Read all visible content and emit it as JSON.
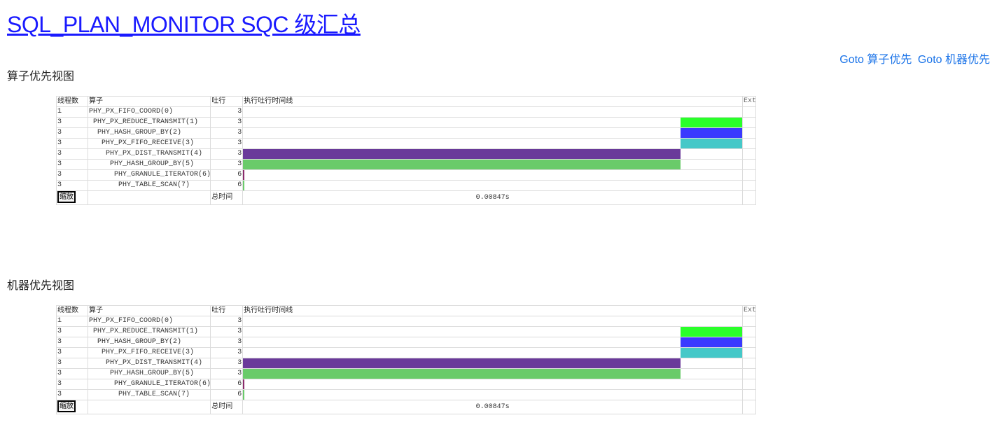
{
  "page": {
    "title": "SQL_PLAN_MONITOR SQC 级汇总",
    "goto_operator": "Goto 算子优先",
    "goto_machine": "Goto 机器优先"
  },
  "colors": {
    "link": "#1a1aff",
    "link_secondary": "#1a73e8",
    "bar_reduce_transmit": "#2aff2a",
    "bar_hash_group_by_2": "#3a3aff",
    "bar_fifo_receive": "#45c8c8",
    "bar_dist_transmit": "#6a3a9a",
    "bar_hash_group_by_5": "#6acb6a",
    "bar_thin": "#8a2a6a"
  },
  "sections": [
    {
      "heading": "算子优先视图",
      "columns": {
        "threads": "线程数",
        "operator": "算子",
        "rows": "吐行",
        "timeline": "执行吐行时间线",
        "ext": "Ext"
      },
      "rows": [
        {
          "threads": "1",
          "operator": "PHY_PX_FIFO_COORD(0)",
          "indent": 0,
          "rows": "3",
          "bar": null
        },
        {
          "threads": "3",
          "operator": "PHY_PX_REDUCE_TRANSMIT(1)",
          "indent": 1,
          "rows": "3",
          "bar": {
            "start": 0.8766,
            "end": 1.0,
            "color": "#2aff2a"
          }
        },
        {
          "threads": "3",
          "operator": "PHY_HASH_GROUP_BY(2)",
          "indent": 2,
          "rows": "3",
          "bar": {
            "start": 0.8766,
            "end": 1.0,
            "color": "#3a3aff"
          }
        },
        {
          "threads": "3",
          "operator": "PHY_PX_FIFO_RECEIVE(3)",
          "indent": 3,
          "rows": "3",
          "bar": {
            "start": 0.8766,
            "end": 1.0,
            "color": "#45c8c8"
          }
        },
        {
          "threads": "3",
          "operator": "PHY_PX_DIST_TRANSMIT(4)",
          "indent": 4,
          "rows": "3",
          "bar": {
            "start": 0.0,
            "end": 0.8766,
            "color": "#6a3a9a"
          }
        },
        {
          "threads": "3",
          "operator": "PHY_HASH_GROUP_BY(5)",
          "indent": 5,
          "rows": "3",
          "bar": {
            "start": 0.0,
            "end": 0.8766,
            "color": "#6acb6a"
          }
        },
        {
          "threads": "3",
          "operator": "PHY_GRANULE_ITERATOR(6)",
          "indent": 6,
          "rows": "6",
          "bar": {
            "start": 0.0,
            "end": 0.0025,
            "color": "#8a2a6a"
          }
        },
        {
          "threads": "3",
          "operator": "PHY_TABLE_SCAN(7)",
          "indent": 7,
          "rows": "6",
          "bar": {
            "start": 0.0,
            "end": 0.0025,
            "color": "#6acb6a"
          }
        }
      ],
      "footer": {
        "zoom": "缩放",
        "total_label": "总时间",
        "total_value": "0.00847s"
      }
    },
    {
      "heading": "机器优先视图",
      "columns": {
        "threads": "线程数",
        "operator": "算子",
        "rows": "吐行",
        "timeline": "执行吐行时间线",
        "ext": "Ext"
      },
      "rows": [
        {
          "threads": "1",
          "operator": "PHY_PX_FIFO_COORD(0)",
          "indent": 0,
          "rows": "3",
          "bar": null
        },
        {
          "threads": "3",
          "operator": "PHY_PX_REDUCE_TRANSMIT(1)",
          "indent": 1,
          "rows": "3",
          "bar": {
            "start": 0.8766,
            "end": 1.0,
            "color": "#2aff2a"
          }
        },
        {
          "threads": "3",
          "operator": "PHY_HASH_GROUP_BY(2)",
          "indent": 2,
          "rows": "3",
          "bar": {
            "start": 0.8766,
            "end": 1.0,
            "color": "#3a3aff"
          }
        },
        {
          "threads": "3",
          "operator": "PHY_PX_FIFO_RECEIVE(3)",
          "indent": 3,
          "rows": "3",
          "bar": {
            "start": 0.8766,
            "end": 1.0,
            "color": "#45c8c8"
          }
        },
        {
          "threads": "3",
          "operator": "PHY_PX_DIST_TRANSMIT(4)",
          "indent": 4,
          "rows": "3",
          "bar": {
            "start": 0.0,
            "end": 0.8766,
            "color": "#6a3a9a"
          }
        },
        {
          "threads": "3",
          "operator": "PHY_HASH_GROUP_BY(5)",
          "indent": 5,
          "rows": "3",
          "bar": {
            "start": 0.0,
            "end": 0.8766,
            "color": "#6acb6a"
          }
        },
        {
          "threads": "3",
          "operator": "PHY_GRANULE_ITERATOR(6)",
          "indent": 6,
          "rows": "6",
          "bar": {
            "start": 0.0,
            "end": 0.0025,
            "color": "#8a2a6a"
          }
        },
        {
          "threads": "3",
          "operator": "PHY_TABLE_SCAN(7)",
          "indent": 7,
          "rows": "6",
          "bar": {
            "start": 0.0,
            "end": 0.0025,
            "color": "#6acb6a"
          }
        }
      ],
      "footer": {
        "zoom": "缩放",
        "total_label": "总时间",
        "total_value": "0.00847s"
      }
    }
  ]
}
